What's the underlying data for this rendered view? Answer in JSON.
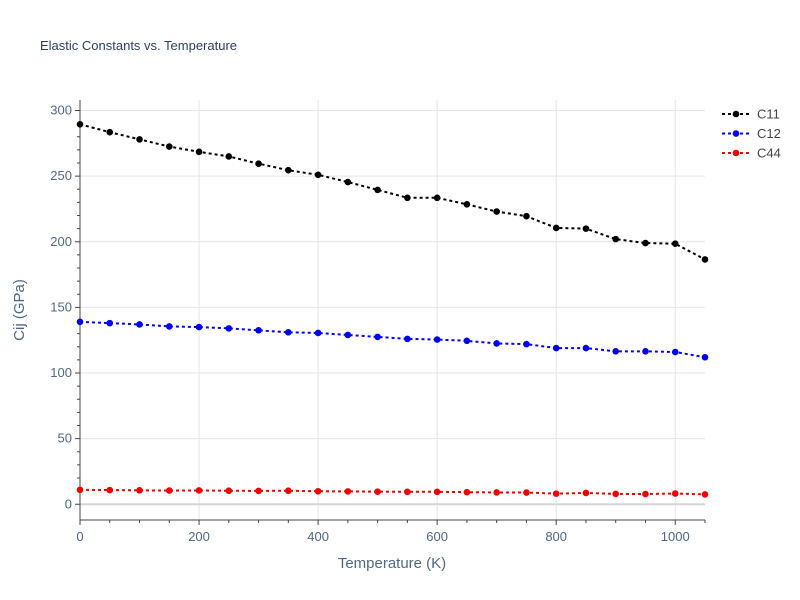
{
  "chart_data": {
    "type": "line",
    "title": "Elastic Constants vs. Temperature",
    "xlabel": "Temperature (K)",
    "ylabel": "Cij (GPa)",
    "xlim": [
      0,
      1050
    ],
    "ylim": [
      -12,
      308
    ],
    "x_ticks": [
      0,
      200,
      400,
      600,
      800,
      1000
    ],
    "y_ticks": [
      0,
      50,
      100,
      150,
      200,
      250,
      300
    ],
    "grid": true,
    "legend_position": "top-right",
    "x": [
      0,
      50,
      100,
      150,
      200,
      250,
      300,
      350,
      400,
      450,
      500,
      550,
      600,
      650,
      700,
      750,
      800,
      850,
      900,
      950,
      1000,
      1050
    ],
    "series": [
      {
        "name": "C11",
        "color": "#000000",
        "values": [
          289.5,
          283.5,
          278.0,
          272.5,
          268.5,
          265.0,
          259.5,
          254.5,
          251.0,
          245.5,
          239.5,
          233.5,
          233.5,
          228.5,
          223.0,
          219.5,
          210.5,
          210.0,
          202.0,
          199.0,
          198.5,
          186.5
        ]
      },
      {
        "name": "C12",
        "color": "#0000ee",
        "values": [
          139.0,
          138.0,
          137.0,
          135.5,
          135.0,
          134.0,
          132.5,
          131.0,
          130.5,
          129.0,
          127.5,
          126.0,
          125.5,
          124.5,
          122.5,
          122.0,
          119.0,
          119.0,
          116.5,
          116.5,
          116.0,
          112.0
        ]
      },
      {
        "name": "C44",
        "color": "#ee0000",
        "values": [
          11.0,
          10.8,
          10.6,
          10.4,
          10.5,
          10.3,
          10.2,
          10.3,
          9.9,
          9.8,
          9.6,
          9.5,
          9.5,
          9.2,
          9.0,
          8.9,
          8.1,
          8.6,
          7.9,
          7.8,
          8.2,
          7.5
        ]
      }
    ]
  }
}
